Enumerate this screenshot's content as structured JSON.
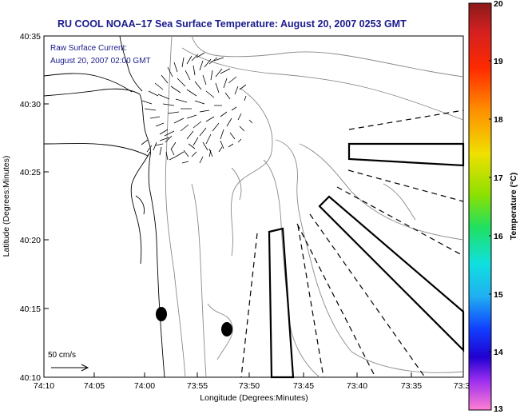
{
  "map": {
    "title": "RU COOL  NOAA–17  Sea Surface Temperature:  August 20, 2007 0253 GMT",
    "current_label_line1": "Raw Surface Current:",
    "current_label_line2": "August 20, 2007 02:00 GMT",
    "scale_label": "50 cm/s",
    "x_axis_label": "Longitude (Degrees:Minutes)",
    "y_axis_label": "Latitude (Degrees:Minutes)",
    "x_ticks": [
      "74:10",
      "74:05",
      "74:00",
      "73:55",
      "73:50",
      "73:45",
      "73:40",
      "73:35",
      "73:3"
    ],
    "y_ticks": [
      "40:35",
      "40:30",
      "40:25",
      "40:20",
      "40:15",
      "40:10"
    ],
    "colors": {
      "title": "#1a1a8c",
      "land_line": "#000000",
      "isobath": "#888888"
    }
  },
  "colorbar": {
    "label": "Temperature (°C)",
    "ticks": [
      "20",
      "19",
      "18",
      "17",
      "16",
      "15",
      "14",
      "13"
    ],
    "min": 13,
    "max": 20
  }
}
